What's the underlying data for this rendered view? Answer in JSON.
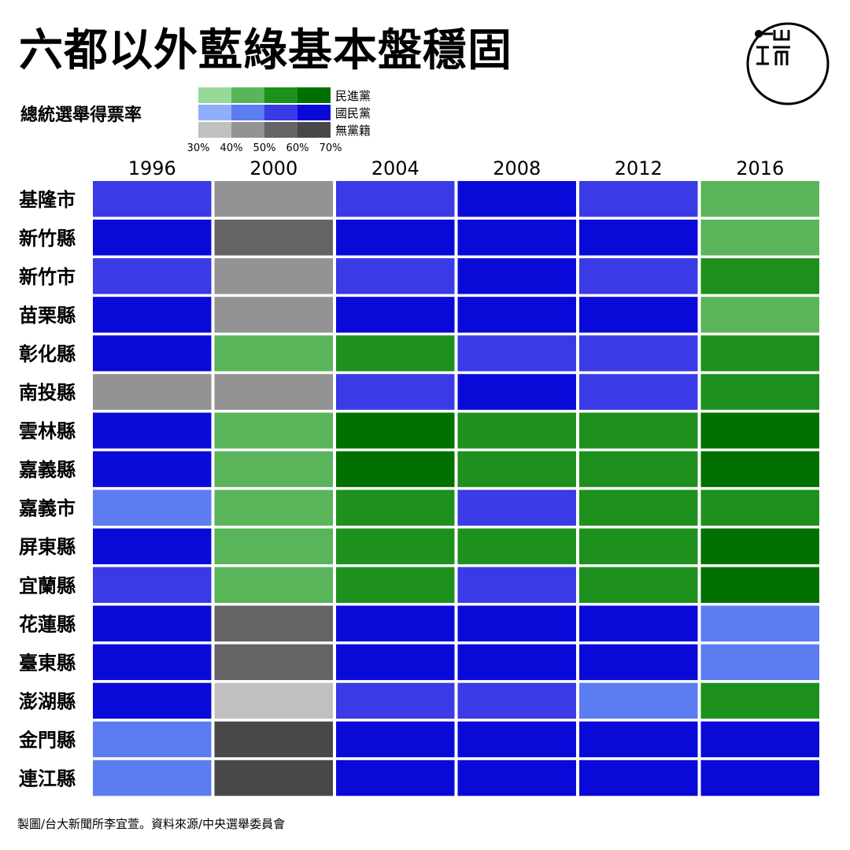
{
  "header": {
    "title": "六都以外藍綠基本盤穩固",
    "subtitle": "總統選舉得票率"
  },
  "footer": {
    "credit": "製圖/台大新聞所李宜萱。資料來源/中央選舉委員會"
  },
  "logo": {
    "icon": "brand-logo-icon"
  },
  "legend": {
    "bins": [
      "30%",
      "40%",
      "50%",
      "60%",
      "70%"
    ],
    "rows": [
      {
        "party": "民進黨",
        "colors": [
          "#98d898",
          "#5ab45a",
          "#1e901e",
          "#007000"
        ]
      },
      {
        "party": "國民黨",
        "colors": [
          "#90aff8",
          "#5c7cf2",
          "#3a3ae6",
          "#0a0ad8"
        ]
      },
      {
        "party": "無黨籍",
        "colors": [
          "#c0c0c0",
          "#939393",
          "#646464",
          "#484848"
        ]
      }
    ]
  },
  "chart_data": {
    "type": "heatmap",
    "title": "六都以外藍綠基本盤穩固",
    "subtitle": "總統選舉得票率",
    "x": [
      "1996",
      "2000",
      "2004",
      "2008",
      "2012",
      "2016"
    ],
    "y": [
      "基隆市",
      "新竹縣",
      "新竹市",
      "苗栗縣",
      "彰化縣",
      "南投縣",
      "雲林縣",
      "嘉義縣",
      "嘉義市",
      "屏東縣",
      "宜蘭縣",
      "花蓮縣",
      "臺東縣",
      "澎湖縣",
      "金門縣",
      "連江縣"
    ],
    "party_codes": {
      "G": "民進黨",
      "B": "國民黨",
      "N": "無黨籍"
    },
    "level_bins": [
      "30–40%",
      "40–50%",
      "50–60%",
      "60–70%"
    ],
    "cells": [
      [
        "B3",
        "N2",
        "B3",
        "B4",
        "B3",
        "G2"
      ],
      [
        "B4",
        "N3",
        "B4",
        "B4",
        "B4",
        "G2"
      ],
      [
        "B3",
        "N2",
        "B3",
        "B4",
        "B3",
        "G3"
      ],
      [
        "B4",
        "N2",
        "B4",
        "B4",
        "B4",
        "G2"
      ],
      [
        "B4",
        "G2",
        "G3",
        "B3",
        "B3",
        "G3"
      ],
      [
        "N2",
        "N2",
        "B3",
        "B4",
        "B3",
        "G3"
      ],
      [
        "B4",
        "G2",
        "G4",
        "G3",
        "G3",
        "G4"
      ],
      [
        "B4",
        "G2",
        "G4",
        "G3",
        "G3",
        "G4"
      ],
      [
        "B2",
        "G2",
        "G3",
        "B3",
        "G3",
        "G3"
      ],
      [
        "B4",
        "G2",
        "G3",
        "G3",
        "G3",
        "G4"
      ],
      [
        "B3",
        "G2",
        "G3",
        "B3",
        "G3",
        "G4"
      ],
      [
        "B4",
        "N3",
        "B4",
        "B4",
        "B4",
        "B2"
      ],
      [
        "B4",
        "N3",
        "B4",
        "B4",
        "B4",
        "B2"
      ],
      [
        "B4",
        "N1",
        "B3",
        "B3",
        "B2",
        "G3"
      ],
      [
        "B2",
        "N4",
        "B4",
        "B4",
        "B4",
        "B4"
      ],
      [
        "B2",
        "N4",
        "B4",
        "B4",
        "B4",
        "B4"
      ]
    ]
  }
}
